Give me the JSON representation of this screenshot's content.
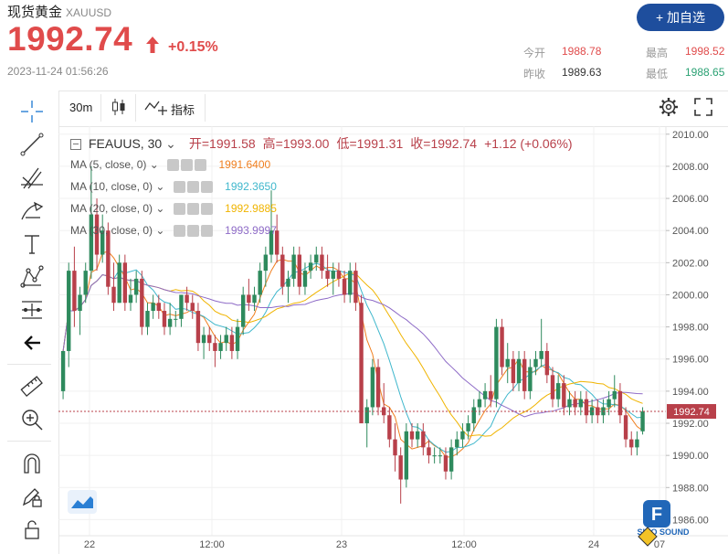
{
  "header": {
    "name": "现货黄金",
    "symbol": "XAUUSD",
    "price": "1992.74",
    "change_pct": "+0.15%",
    "datetime": "2023-11-24 01:56:26",
    "add_button": "+ 加自选",
    "quotes": {
      "open_label": "今开",
      "open_value": "1988.78",
      "high_label": "最高",
      "high_value": "1998.52",
      "prev_label": "昨收",
      "prev_value": "1989.63",
      "low_label": "最低",
      "low_value": "1988.65"
    }
  },
  "toolbar": {
    "interval": "30m",
    "indicators_label": "指标"
  },
  "legend": {
    "symbol": "FEAUUS, 30",
    "open": "开=1991.58",
    "high": "高=1993.00",
    "low": "低=1991.31",
    "close": "收=1992.74",
    "change": "+1.12 (+0.06%)",
    "ma": [
      {
        "label": "MA (5, close, 0)",
        "value": "1991.6400",
        "color": "#f07f1f"
      },
      {
        "label": "MA (10, close, 0)",
        "value": "1992.3650",
        "color": "#3fb7cc"
      },
      {
        "label": "MA (20, close, 0)",
        "value": "1992.9885",
        "color": "#f0b400"
      },
      {
        "label": "MA (30, close, 0)",
        "value": "1993.9997",
        "color": "#8e6bc7"
      }
    ]
  },
  "colors": {
    "up": "#2e8a5d",
    "down": "#b8404a",
    "accent": "#1e4e9d",
    "price_red": "#e04b4b"
  },
  "axis": {
    "y_ticks": [
      "2010.00",
      "2008.00",
      "2006.00",
      "2004.00",
      "2002.00",
      "2000.00",
      "1998.00",
      "1996.00",
      "1994.00",
      "1992.00",
      "1990.00",
      "1988.00",
      "1986.00"
    ],
    "x_ticks": [
      "22",
      "12:00",
      "23",
      "12:00",
      "24",
      "07"
    ],
    "last_price_label": "1992.74"
  },
  "watermark": "SINO SOUND",
  "chart_data": {
    "type": "candlestick",
    "interval": "30m",
    "y_range": [
      1985,
      2010.5
    ],
    "last": 1992.74,
    "candles": [
      [
        1994,
        1996.5,
        1993.5,
        1996.5
      ],
      [
        1996.5,
        2002,
        1995.5,
        2001.5
      ],
      [
        2001.5,
        2003,
        1998,
        1999
      ],
      [
        1999,
        2000.5,
        1997.5,
        2000
      ],
      [
        2000,
        2002,
        1999.5,
        2001.5
      ],
      [
        2001.5,
        2008,
        2001,
        2005
      ],
      [
        2005,
        2006,
        2001.5,
        2002.5
      ],
      [
        2002.5,
        2005,
        2002,
        2004
      ],
      [
        2004,
        2004.5,
        2000,
        2000.5
      ],
      [
        2000.5,
        2002,
        1999,
        1999.5
      ],
      [
        1999.5,
        2002.5,
        1999.5,
        2002
      ],
      [
        2002,
        2002.5,
        1999,
        1999.5
      ],
      [
        1999.5,
        2001,
        1999,
        2000
      ],
      [
        2000,
        2001.5,
        1999.5,
        2001
      ],
      [
        2001,
        2001.5,
        1997.5,
        1998
      ],
      [
        1998,
        1999.5,
        1997.5,
        1999
      ],
      [
        1999,
        2000,
        1998.5,
        1999.5
      ],
      [
        1999.5,
        2000,
        1998.5,
        1999
      ],
      [
        1999,
        1999.5,
        1997.5,
        1998
      ],
      [
        1998,
        1999.5,
        1997.5,
        1998.5
      ],
      [
        1998.5,
        1999,
        1998,
        1998.5
      ],
      [
        1998.5,
        2000,
        1998,
        2000
      ],
      [
        2000,
        2000.5,
        1999,
        1999.5
      ],
      [
        1999.5,
        2000,
        1998.5,
        1999
      ],
      [
        1999,
        1999.5,
        1996.5,
        1997
      ],
      [
        1997,
        1998,
        1996,
        1997.5
      ],
      [
        1997.5,
        1998,
        1996.5,
        1997
      ],
      [
        1997,
        1997.5,
        1995.5,
        1996.5
      ],
      [
        1996.5,
        1997.5,
        1996,
        1997
      ],
      [
        1997,
        1998,
        1996.5,
        1997.5
      ],
      [
        1997.5,
        1998,
        1996,
        1996.5
      ],
      [
        1996.5,
        1998.5,
        1996,
        1998
      ],
      [
        1998,
        2000.5,
        1997.5,
        2000
      ],
      [
        2000,
        2001,
        1999,
        1999.5
      ],
      [
        1999.5,
        2000.5,
        1999,
        2000
      ],
      [
        2000,
        2002,
        1999.5,
        2001.5
      ],
      [
        2001.5,
        2003,
        2000.5,
        2002.5
      ],
      [
        2002.5,
        2006.5,
        2002,
        2004
      ],
      [
        2004,
        2005,
        2002,
        2002.5
      ],
      [
        2002.5,
        2003,
        2000,
        2000.5
      ],
      [
        2000.5,
        2001.5,
        1999.5,
        2001
      ],
      [
        2001,
        2003,
        2000.5,
        2002.5
      ],
      [
        2002.5,
        2003,
        2000,
        2000.5
      ],
      [
        2000.5,
        2002,
        2000,
        2001.5
      ],
      [
        2001.5,
        2002.5,
        2001,
        2002
      ],
      [
        2002,
        2003,
        2001.5,
        2002.5
      ],
      [
        2002.5,
        2003,
        2001,
        2001.5
      ],
      [
        2001.5,
        2002.5,
        2000.5,
        2001
      ],
      [
        2001,
        2002,
        2000,
        2001.5
      ],
      [
        2001.5,
        2002,
        2000.5,
        2001
      ],
      [
        2001,
        2001.5,
        1999.5,
        2000
      ],
      [
        2000,
        2002,
        1999.5,
        2001.5
      ],
      [
        2001.5,
        2002,
        1999,
        1999.5
      ],
      [
        1999.5,
        2000,
        1992,
        1992
      ],
      [
        1992,
        1993.5,
        1990.5,
        1993
      ],
      [
        1993,
        1996,
        1992.5,
        1995.5
      ],
      [
        1995.5,
        1996,
        1992.5,
        1993
      ],
      [
        1993,
        1994.5,
        1992,
        1992.5
      ],
      [
        1992.5,
        1993,
        1990.5,
        1991
      ],
      [
        1991,
        1992,
        1989,
        1990
      ],
      [
        1990,
        1990.5,
        1987,
        1988.5
      ],
      [
        1988.5,
        1992,
        1988,
        1991.5
      ],
      [
        1991.5,
        1992,
        1990.5,
        1991
      ],
      [
        1991,
        1992,
        1990.5,
        1991.5
      ],
      [
        1991.5,
        1992,
        1990,
        1990.5
      ],
      [
        1990.5,
        1991,
        1989.5,
        1990
      ],
      [
        1990,
        1990.5,
        1989.5,
        1990
      ],
      [
        1990,
        1990.5,
        1989.5,
        1990
      ],
      [
        1990,
        1990.5,
        1988.5,
        1989
      ],
      [
        1989,
        1991,
        1988.5,
        1990.5
      ],
      [
        1990.5,
        1991.5,
        1990,
        1991
      ],
      [
        1991,
        1992,
        1990.5,
        1991.5
      ],
      [
        1991.5,
        1992.5,
        1991,
        1992
      ],
      [
        1992,
        1993.5,
        1991.5,
        1993
      ],
      [
        1993,
        1994,
        1992.5,
        1993.5
      ],
      [
        1993.5,
        1994.5,
        1993,
        1994
      ],
      [
        1994,
        1995,
        1993,
        1993.5
      ],
      [
        1993.5,
        1998.5,
        1993,
        1998
      ],
      [
        1998,
        1998.5,
        1995,
        1995.5
      ],
      [
        1995.5,
        1997,
        1994.5,
        1996
      ],
      [
        1996,
        1996.5,
        1994,
        1994.5
      ],
      [
        1994.5,
        1996.5,
        1994,
        1996
      ],
      [
        1996,
        1996.5,
        1993.5,
        1994
      ],
      [
        1994,
        1996,
        1993.5,
        1995.5
      ],
      [
        1995.5,
        1996.5,
        1995,
        1996
      ],
      [
        1996,
        1998.5,
        1995.5,
        1996.5
      ],
      [
        1996.5,
        1997,
        1994.5,
        1995
      ],
      [
        1995,
        1995.5,
        1993,
        1993.5
      ],
      [
        1993.5,
        1995,
        1993,
        1994.5
      ],
      [
        1994.5,
        1995,
        1992.5,
        1993
      ],
      [
        1993,
        1994,
        1992.5,
        1993.5
      ],
      [
        1993.5,
        1994,
        1992.5,
        1993
      ],
      [
        1993,
        1994,
        1992.5,
        1993.5
      ],
      [
        1993.5,
        1994,
        1992,
        1992.5
      ],
      [
        1992.5,
        1993.5,
        1992,
        1993
      ],
      [
        1993,
        1993.5,
        1992,
        1992.5
      ],
      [
        1992.5,
        1993.5,
        1992,
        1993
      ],
      [
        1993,
        1994,
        1992.5,
        1993.5
      ],
      [
        1993.5,
        1995,
        1993,
        1994
      ],
      [
        1994,
        1994.5,
        1992,
        1992.5
      ],
      [
        1992.5,
        1993,
        1990.5,
        1991
      ],
      [
        1991,
        1991.5,
        1990,
        1990.5
      ],
      [
        1990.5,
        1991.5,
        1990,
        1991
      ],
      [
        1991.5,
        1993,
        1991.3,
        1992.74
      ]
    ]
  }
}
